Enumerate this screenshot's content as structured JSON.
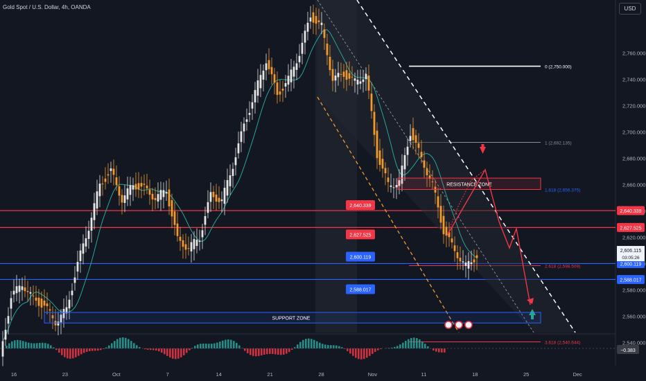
{
  "header": {
    "title": "Gold Spot / U.S. Dollar, 4h, OANDA",
    "currency": "USD"
  },
  "colors": {
    "bg": "#131722",
    "up": "#e6e6e6",
    "down": "#f29a2e",
    "red": "#f23645",
    "blue": "#2962ff",
    "teal": "#26a69a",
    "text": "#d1d4dc",
    "axis": "#b2b5be"
  },
  "chart_data": {
    "type": "candlestick",
    "title": "Gold Spot / U.S. Dollar, 4h, OANDA",
    "ylim": [
      2530,
      2775
    ],
    "y_ticks": [
      2540,
      2560,
      2580,
      2600,
      2620,
      2640,
      2660,
      2680,
      2700,
      2720,
      2740,
      2760
    ],
    "x_tick_labels": [
      "16",
      "23",
      "Oct",
      "7",
      "14",
      "21",
      "28",
      "Nov",
      "11",
      "18",
      "25",
      "Dec"
    ],
    "price_path": [
      [
        16,
        2528
      ],
      [
        17,
        2575
      ],
      [
        19,
        2585
      ],
      [
        20,
        2573
      ],
      [
        21,
        2568
      ],
      [
        22,
        2556
      ],
      [
        23,
        2565
      ],
      [
        25,
        2600
      ],
      [
        26,
        2628
      ],
      [
        27,
        2660
      ],
      [
        29,
        2670
      ],
      [
        30,
        2649
      ],
      [
        2,
        2660
      ],
      [
        4,
        2657
      ],
      [
        6,
        2650
      ],
      [
        7,
        2656
      ],
      [
        8,
        2618
      ],
      [
        9,
        2612
      ],
      [
        10,
        2620
      ],
      [
        11,
        2652
      ],
      [
        14,
        2648
      ],
      [
        16,
        2675
      ],
      [
        18,
        2705
      ],
      [
        21,
        2730
      ],
      [
        23,
        2755
      ],
      [
        24,
        2728
      ],
      [
        25,
        2740
      ],
      [
        28,
        2760
      ],
      [
        29,
        2788
      ],
      [
        30,
        2780
      ],
      [
        31,
        2740
      ],
      [
        32,
        2744
      ],
      [
        33,
        2738
      ],
      [
        35,
        2744
      ],
      [
        36,
        2683
      ],
      [
        37,
        2660
      ],
      [
        38,
        2662
      ],
      [
        39,
        2700
      ],
      [
        40,
        2680
      ],
      [
        41,
        2660
      ],
      [
        42,
        2625
      ],
      [
        43,
        2610
      ],
      [
        44,
        2598
      ],
      [
        45,
        2606
      ]
    ],
    "fib_levels": [
      {
        "label": "0 (2,750.000)",
        "value": 2750.0,
        "color": "#ffffff"
      },
      {
        "label": "1 (2,692.135)",
        "value": 2692.135,
        "color": "#8a8e99"
      },
      {
        "label": "1.618 (2,656.375)",
        "value": 2656.375,
        "color": "#2962ff"
      },
      {
        "label": "2.618 (2,598.509)",
        "value": 2598.509,
        "color": "#f23645"
      },
      {
        "label": "3.618 (2,540.644)",
        "value": 2540.644,
        "color": "#f23645"
      }
    ],
    "horizontal_levels": [
      {
        "value": 2640.339,
        "label": "2,640.339",
        "color": "#f23645"
      },
      {
        "value": 2627.525,
        "label": "2,627.525",
        "color": "#f23645"
      },
      {
        "value": 2600.119,
        "label": "2,600.119",
        "color": "#2962ff"
      },
      {
        "value": 2588.017,
        "label": "2,588.017",
        "color": "#2962ff"
      }
    ],
    "current_price": {
      "label": "2,606.115",
      "countdown": "03:05:26"
    },
    "zones": [
      {
        "label": "RESISTANCE ZONE",
        "low": 2656.375,
        "high": 2665
      },
      {
        "label": "SUPPORT ZONE",
        "low": 2555,
        "high": 2563
      }
    ],
    "oscillator": {
      "current_label": "−0.383"
    }
  }
}
